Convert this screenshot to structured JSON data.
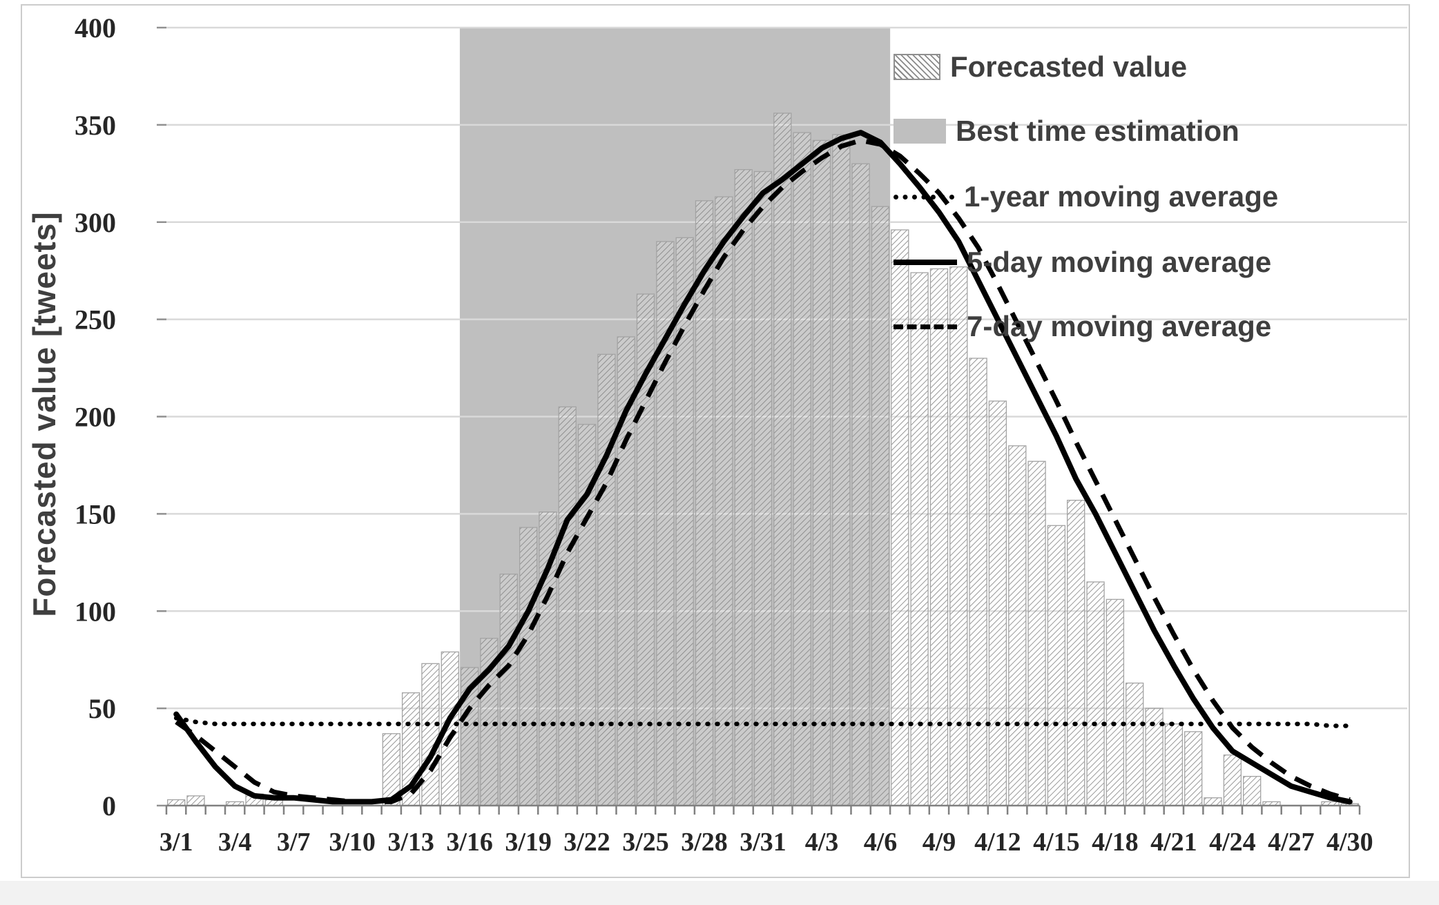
{
  "figure": {
    "background": "#ffffff",
    "border_color": "#cccccc"
  },
  "chart_data": {
    "type": "bar",
    "subtype": "combo-bar-line-band",
    "title": "",
    "xlabel": "",
    "ylabel": "Forecasted value [tweets]",
    "ylim": [
      0,
      400
    ],
    "yticks": [
      0,
      50,
      100,
      150,
      200,
      250,
      300,
      350,
      400
    ],
    "grid": "horizontal",
    "xtick_every": 3,
    "categories": [
      "3/1",
      "3/2",
      "3/3",
      "3/4",
      "3/5",
      "3/6",
      "3/7",
      "3/8",
      "3/9",
      "3/10",
      "3/11",
      "3/12",
      "3/13",
      "3/14",
      "3/15",
      "3/16",
      "3/17",
      "3/18",
      "3/19",
      "3/20",
      "3/21",
      "3/22",
      "3/23",
      "3/24",
      "3/25",
      "3/26",
      "3/27",
      "3/28",
      "3/29",
      "3/30",
      "3/31",
      "4/1",
      "4/2",
      "4/3",
      "4/4",
      "4/5",
      "4/6",
      "4/7",
      "4/8",
      "4/9",
      "4/10",
      "4/11",
      "4/12",
      "4/13",
      "4/14",
      "4/15",
      "4/16",
      "4/17",
      "4/18",
      "4/19",
      "4/20",
      "4/21",
      "4/22",
      "4/23",
      "4/24",
      "4/25",
      "4/26",
      "4/27",
      "4/28",
      "4/29",
      "4/30"
    ],
    "bars": {
      "name": "Forecasted value",
      "values": [
        3,
        5,
        0,
        2,
        6,
        4,
        0,
        0,
        0,
        0,
        0,
        37,
        58,
        73,
        79,
        71,
        86,
        119,
        143,
        151,
        205,
        196,
        232,
        241,
        263,
        290,
        292,
        311,
        313,
        327,
        326,
        356,
        346,
        342,
        345,
        330,
        308,
        296,
        274,
        276,
        277,
        230,
        208,
        185,
        177,
        144,
        157,
        115,
        106,
        63,
        50,
        42,
        38,
        4,
        26,
        15,
        2,
        0,
        0,
        2,
        1
      ]
    },
    "band": {
      "name": "Best time estimation",
      "start": "3/16",
      "end": "4/6",
      "color": "#bfbfbf"
    },
    "series": [
      {
        "name": "1-year moving average",
        "style": "dotted",
        "color": "#000000",
        "values": [
          45,
          43,
          42,
          42,
          42,
          42,
          42,
          42,
          42,
          42,
          42,
          42,
          42,
          42,
          42,
          42,
          42,
          42,
          42,
          42,
          42,
          42,
          42,
          42,
          42,
          42,
          42,
          42,
          42,
          42,
          42,
          42,
          42,
          42,
          42,
          42,
          42,
          42,
          42,
          42,
          42,
          42,
          42,
          42,
          42,
          42,
          42,
          42,
          42,
          42,
          42,
          42,
          42,
          42,
          42,
          42,
          42,
          42,
          42,
          41,
          41
        ]
      },
      {
        "name": "5-day moving average",
        "style": "solid",
        "color": "#000000",
        "values": [
          47,
          33,
          20,
          10,
          5,
          4,
          4,
          3,
          2,
          2,
          2,
          3,
          10,
          25,
          45,
          60,
          70,
          82,
          100,
          122,
          147,
          160,
          180,
          203,
          222,
          240,
          258,
          275,
          290,
          303,
          315,
          322,
          330,
          338,
          343,
          346,
          341,
          330,
          318,
          305,
          290,
          270,
          250,
          230,
          210,
          190,
          168,
          150,
          130,
          110,
          90,
          72,
          55,
          40,
          28,
          22,
          16,
          10,
          7,
          4,
          2
        ]
      },
      {
        "name": "7-day moving average",
        "style": "dashed",
        "color": "#000000",
        "values": [
          43,
          36,
          28,
          20,
          12,
          7,
          5,
          4,
          3,
          2,
          2,
          2,
          6,
          18,
          35,
          50,
          62,
          72,
          88,
          108,
          130,
          148,
          166,
          188,
          208,
          228,
          247,
          265,
          282,
          296,
          308,
          318,
          326,
          333,
          339,
          342,
          340,
          334,
          325,
          315,
          302,
          287,
          268,
          248,
          228,
          208,
          187,
          167,
          147,
          127,
          107,
          88,
          70,
          54,
          40,
          30,
          22,
          15,
          10,
          6,
          3
        ]
      }
    ],
    "legend": {
      "position": "top-right",
      "entries": [
        {
          "label": "Forecasted value",
          "swatch": "hatch-box"
        },
        {
          "label": "Best time estimation",
          "swatch": "gray-box"
        },
        {
          "label": "1-year moving average",
          "swatch": "dotted-line"
        },
        {
          "label": "5-day moving average",
          "swatch": "solid-line"
        },
        {
          "label": "7-day moving average",
          "swatch": "dashed-line"
        }
      ]
    },
    "colors": {
      "band": "#bfbfbf",
      "gridline": "#d9d9d9",
      "axis": "#808080",
      "bar_hatch": "#858585",
      "bar_border": "#a3a3a3",
      "tick_text": "#262626",
      "label_text": "#3f3f3f",
      "line": "#000000"
    }
  }
}
